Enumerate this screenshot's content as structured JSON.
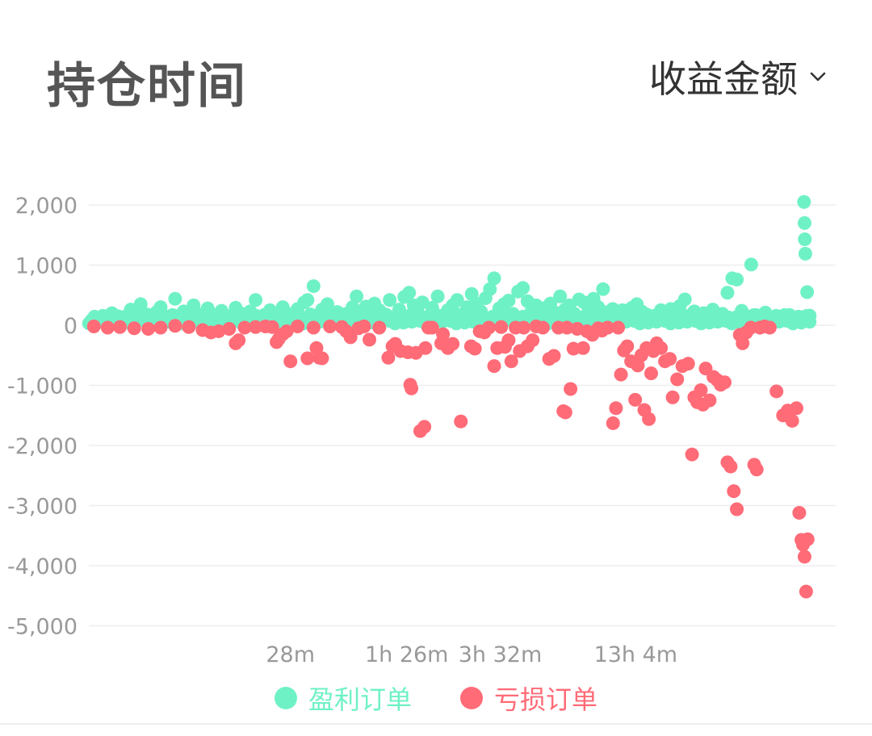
{
  "header": {
    "title": "持仓时间",
    "metric_label": "收益金额"
  },
  "colors": {
    "profit": "#6FF1C6",
    "loss": "#FF6B77",
    "axis_text": "#999999",
    "grid": "#eeeeee"
  },
  "legend": {
    "profit_label": "盈利订单",
    "loss_label": "亏损订单"
  },
  "chart_data": {
    "type": "scatter",
    "y_scale": "linear",
    "ylim": [
      -5000,
      2200
    ],
    "y_ticks": [
      2000,
      1000,
      0,
      -1000,
      -2000,
      -3000,
      -4000,
      -5000
    ],
    "y_tick_labels": [
      "2,000",
      "1,000",
      "0",
      "-1,000",
      "-2,000",
      "-3,000",
      "-4,000",
      "-5,000"
    ],
    "x_scale": "log",
    "x_unit": "minutes",
    "xlim": [
      4,
      5400
    ],
    "x_ticks": [
      28,
      86,
      212,
      784
    ],
    "x_tick_labels": [
      "28m",
      "1h 26m",
      "3h 32m",
      "13h 4m"
    ],
    "grid": true,
    "legend_position": "bottom",
    "series": [
      {
        "name": "盈利订单",
        "color": "#6FF1C6",
        "points": [
          [
            4.2,
            120
          ],
          [
            4.5,
            80
          ],
          [
            4.8,
            60
          ],
          [
            5,
            200
          ],
          [
            5.3,
            150
          ],
          [
            5.6,
            90
          ],
          [
            6,
            260
          ],
          [
            6.3,
            110
          ],
          [
            6.6,
            350
          ],
          [
            7,
            180
          ],
          [
            7.3,
            70
          ],
          [
            7.7,
            220
          ],
          [
            8,
            300
          ],
          [
            8.4,
            140
          ],
          [
            8.8,
            90
          ],
          [
            9.2,
            440
          ],
          [
            9.6,
            160
          ],
          [
            10,
            230
          ],
          [
            10.5,
            100
          ],
          [
            11,
            330
          ],
          [
            11.5,
            180
          ],
          [
            12,
            120
          ],
          [
            12.6,
            280
          ],
          [
            13,
            190
          ],
          [
            13.7,
            90
          ],
          [
            14.4,
            240
          ],
          [
            15,
            160
          ],
          [
            15.7,
            110
          ],
          [
            16.5,
            290
          ],
          [
            17.3,
            200
          ],
          [
            18,
            150
          ],
          [
            19,
            230
          ],
          [
            20,
            420
          ],
          [
            21,
            120
          ],
          [
            22,
            180
          ],
          [
            23,
            250
          ],
          [
            24,
            90
          ],
          [
            25,
            140
          ],
          [
            26,
            300
          ],
          [
            27,
            200
          ],
          [
            28,
            110
          ],
          [
            30,
            270
          ],
          [
            32,
            380
          ],
          [
            33,
            420
          ],
          [
            34,
            180
          ],
          [
            35,
            650
          ],
          [
            36,
            120
          ],
          [
            38,
            260
          ],
          [
            40,
            350
          ],
          [
            42,
            150
          ],
          [
            44,
            220
          ],
          [
            46,
            110
          ],
          [
            48,
            190
          ],
          [
            51,
            300
          ],
          [
            53,
            480
          ],
          [
            55,
            220
          ],
          [
            58,
            310
          ],
          [
            60,
            140
          ],
          [
            63,
            360
          ],
          [
            66,
            250
          ],
          [
            70,
            180
          ],
          [
            73,
            420
          ],
          [
            76,
            120
          ],
          [
            80,
            260
          ],
          [
            84,
            470
          ],
          [
            88,
            540
          ],
          [
            92,
            330
          ],
          [
            96,
            200
          ],
          [
            100,
            380
          ],
          [
            105,
            140
          ],
          [
            110,
            290
          ],
          [
            116,
            480
          ],
          [
            122,
            160
          ],
          [
            128,
            250
          ],
          [
            134,
            330
          ],
          [
            140,
            420
          ],
          [
            147,
            180
          ],
          [
            154,
            300
          ],
          [
            161,
            520
          ],
          [
            168,
            360
          ],
          [
            176,
            230
          ],
          [
            184,
            450
          ],
          [
            192,
            600
          ],
          [
            200,
            780
          ],
          [
            210,
            280
          ],
          [
            220,
            350
          ],
          [
            230,
            410
          ],
          [
            240,
            190
          ],
          [
            252,
            560
          ],
          [
            264,
            620
          ],
          [
            276,
            400
          ],
          [
            288,
            260
          ],
          [
            300,
            330
          ],
          [
            314,
            180
          ],
          [
            328,
            290
          ],
          [
            344,
            360
          ],
          [
            360,
            210
          ],
          [
            378,
            480
          ],
          [
            396,
            260
          ],
          [
            414,
            330
          ],
          [
            434,
            190
          ],
          [
            454,
            430
          ],
          [
            476,
            380
          ],
          [
            498,
            250
          ],
          [
            522,
            440
          ],
          [
            546,
            300
          ],
          [
            572,
            600
          ],
          [
            600,
            220
          ],
          [
            628,
            270
          ],
          [
            658,
            190
          ],
          [
            690,
            250
          ],
          [
            722,
            160
          ],
          [
            756,
            290
          ],
          [
            792,
            350
          ],
          [
            830,
            230
          ],
          [
            870,
            180
          ],
          [
            910,
            110
          ],
          [
            955,
            150
          ],
          [
            1000,
            250
          ],
          [
            1050,
            180
          ],
          [
            1100,
            270
          ],
          [
            1150,
            130
          ],
          [
            1200,
            320
          ],
          [
            1260,
            430
          ],
          [
            1320,
            160
          ],
          [
            1380,
            230
          ],
          [
            1440,
            140
          ],
          [
            1510,
            200
          ],
          [
            1580,
            170
          ],
          [
            1650,
            260
          ],
          [
            1730,
            120
          ],
          [
            1810,
            190
          ],
          [
            1900,
            540
          ],
          [
            1990,
            780
          ],
          [
            2080,
            760
          ],
          [
            2180,
            240
          ],
          [
            2280,
            150
          ],
          [
            2390,
            1010
          ],
          [
            2500,
            170
          ],
          [
            2620,
            130
          ],
          [
            2740,
            210
          ],
          [
            2870,
            100
          ],
          [
            3000,
            120
          ],
          [
            3150,
            90
          ],
          [
            3300,
            80
          ],
          [
            3460,
            170
          ],
          [
            3620,
            120
          ],
          [
            3800,
            140
          ],
          [
            3980,
            2050
          ],
          [
            4000,
            1700
          ],
          [
            4010,
            1430
          ],
          [
            4030,
            1190
          ],
          [
            4100,
            550
          ],
          [
            4200,
            160
          ]
        ]
      },
      {
        "name": "亏损订单",
        "color": "#FF6B77",
        "points": [
          [
            4.2,
            -20
          ],
          [
            4.8,
            -40
          ],
          [
            5.4,
            -30
          ],
          [
            6.2,
            -50
          ],
          [
            7.1,
            -60
          ],
          [
            8,
            -40
          ],
          [
            9.2,
            -10
          ],
          [
            10.5,
            -30
          ],
          [
            12,
            -80
          ],
          [
            13,
            -120
          ],
          [
            14,
            -100
          ],
          [
            15.5,
            -60
          ],
          [
            16.5,
            -300
          ],
          [
            17,
            -250
          ],
          [
            18,
            -40
          ],
          [
            20,
            -30
          ],
          [
            22,
            -20
          ],
          [
            23.5,
            -30
          ],
          [
            24.5,
            -280
          ],
          [
            25,
            -230
          ],
          [
            26,
            -150
          ],
          [
            27,
            -100
          ],
          [
            28,
            -600
          ],
          [
            30,
            -20
          ],
          [
            33,
            -550
          ],
          [
            35,
            -40
          ],
          [
            36,
            -380
          ],
          [
            37,
            -540
          ],
          [
            38,
            -550
          ],
          [
            41,
            -20
          ],
          [
            46,
            -30
          ],
          [
            48,
            -100
          ],
          [
            50,
            -200
          ],
          [
            54,
            -50
          ],
          [
            57,
            -20
          ],
          [
            60,
            -240
          ],
          [
            66,
            -40
          ],
          [
            72,
            -540
          ],
          [
            75,
            -350
          ],
          [
            77,
            -310
          ],
          [
            81,
            -430
          ],
          [
            87,
            -450
          ],
          [
            89,
            -990
          ],
          [
            90,
            -1050
          ],
          [
            94,
            -460
          ],
          [
            98,
            -1760
          ],
          [
            102,
            -1690
          ],
          [
            103,
            -380
          ],
          [
            106,
            -40
          ],
          [
            110,
            -40
          ],
          [
            120,
            -300
          ],
          [
            122,
            -150
          ],
          [
            128,
            -380
          ],
          [
            134,
            -310
          ],
          [
            145,
            -1600
          ],
          [
            160,
            -350
          ],
          [
            166,
            -390
          ],
          [
            174,
            -100
          ],
          [
            182,
            -120
          ],
          [
            190,
            -40
          ],
          [
            200,
            -680
          ],
          [
            206,
            -380
          ],
          [
            214,
            -30
          ],
          [
            222,
            -360
          ],
          [
            230,
            -250
          ],
          [
            236,
            -600
          ],
          [
            246,
            -40
          ],
          [
            256,
            -430
          ],
          [
            266,
            -40
          ],
          [
            276,
            -350
          ],
          [
            290,
            -250
          ],
          [
            300,
            -20
          ],
          [
            320,
            -40
          ],
          [
            340,
            -560
          ],
          [
            356,
            -510
          ],
          [
            372,
            -40
          ],
          [
            390,
            -1430
          ],
          [
            398,
            -1450
          ],
          [
            404,
            -40
          ],
          [
            418,
            -1060
          ],
          [
            430,
            -390
          ],
          [
            446,
            -60
          ],
          [
            472,
            -380
          ],
          [
            490,
            -100
          ],
          [
            516,
            -160
          ],
          [
            546,
            -50
          ],
          [
            566,
            -90
          ],
          [
            598,
            -40
          ],
          [
            630,
            -1630
          ],
          [
            648,
            -1380
          ],
          [
            662,
            -40
          ],
          [
            680,
            -820
          ],
          [
            700,
            -420
          ],
          [
            722,
            -350
          ],
          [
            750,
            -600
          ],
          [
            780,
            -1240
          ],
          [
            800,
            -670
          ],
          [
            828,
            -500
          ],
          [
            852,
            -1410
          ],
          [
            870,
            -380
          ],
          [
            890,
            -1560
          ],
          [
            910,
            -800
          ],
          [
            930,
            -430
          ],
          [
            960,
            -300
          ],
          [
            1000,
            -380
          ],
          [
            1040,
            -600
          ],
          [
            1090,
            -560
          ],
          [
            1120,
            -1200
          ],
          [
            1170,
            -900
          ],
          [
            1230,
            -680
          ],
          [
            1300,
            -640
          ],
          [
            1350,
            -2150
          ],
          [
            1380,
            -1200
          ],
          [
            1420,
            -1280
          ],
          [
            1470,
            -1080
          ],
          [
            1500,
            -1320
          ],
          [
            1540,
            -720
          ],
          [
            1600,
            -1250
          ],
          [
            1660,
            -860
          ],
          [
            1720,
            -910
          ],
          [
            1780,
            -990
          ],
          [
            1850,
            -950
          ],
          [
            1900,
            -2280
          ],
          [
            1960,
            -2350
          ],
          [
            2020,
            -2760
          ],
          [
            2080,
            -3060
          ],
          [
            2140,
            -160
          ],
          [
            2200,
            -300
          ],
          [
            2280,
            -120
          ],
          [
            2380,
            -40
          ],
          [
            2460,
            -2320
          ],
          [
            2520,
            -2400
          ],
          [
            2600,
            -40
          ],
          [
            2720,
            -20
          ],
          [
            2860,
            -40
          ],
          [
            3050,
            -1100
          ],
          [
            3250,
            -1500
          ],
          [
            3400,
            -1420
          ],
          [
            3550,
            -1590
          ],
          [
            3700,
            -1380
          ],
          [
            3800,
            -3120
          ],
          [
            3880,
            -3570
          ],
          [
            3940,
            -3650
          ],
          [
            4000,
            -3850
          ],
          [
            4060,
            -4430
          ],
          [
            4120,
            -3560
          ]
        ]
      }
    ]
  }
}
